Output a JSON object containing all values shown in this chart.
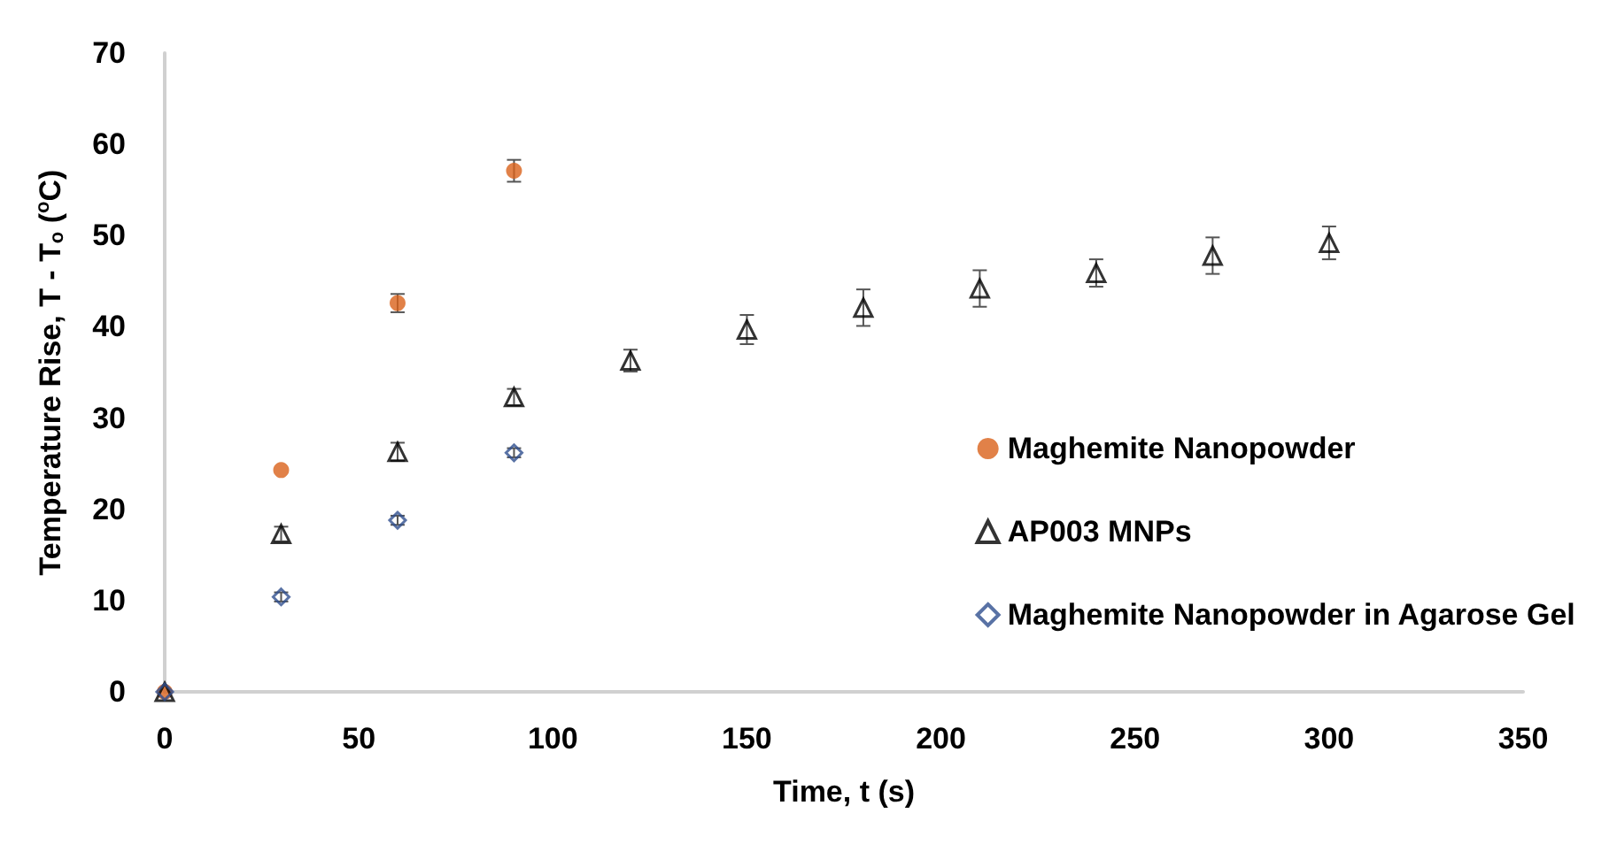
{
  "chart_data": {
    "type": "scatter",
    "xlabel": "Time, t (s)",
    "ylabel": "Temperature Rise, T - T$_{o}$ ($^{o}$C)",
    "xlim": [
      0,
      350
    ],
    "xticks": [
      0,
      50,
      100,
      150,
      200,
      250,
      300,
      350
    ],
    "ylim": [
      0,
      70
    ],
    "yticks": [
      0,
      10,
      20,
      30,
      40,
      50,
      60,
      70
    ],
    "grid": false,
    "legend": "right",
    "series": [
      {
        "name": "Maghemite Nanopowder",
        "color": "#d9621a",
        "marker": "circle",
        "x": [
          0,
          30,
          60,
          90
        ],
        "values": [
          0,
          24.3,
          42.6,
          57.1
        ],
        "errors": [
          null,
          null,
          1.0,
          1.2
        ]
      },
      {
        "name": "AP003 MNPs",
        "color": "#000000",
        "marker": "triangle",
        "x": [
          0,
          30,
          60,
          90,
          120,
          150,
          180,
          210,
          240,
          270,
          300
        ],
        "values": [
          0,
          17.3,
          26.3,
          32.3,
          36.3,
          39.7,
          42.1,
          44.2,
          45.9,
          47.8,
          49.2
        ],
        "errors": [
          null,
          0.8,
          1.0,
          0.9,
          1.2,
          1.6,
          2.0,
          2.0,
          1.5,
          2.0,
          1.8
        ]
      },
      {
        "name": "Maghemite Nanopowder in Agarose Gel",
        "color": "#2f4f8f",
        "marker": "diamond",
        "x": [
          0,
          30,
          60,
          90
        ],
        "values": [
          0,
          10.4,
          18.8,
          26.2
        ],
        "errors": [
          null,
          0.5,
          0.5,
          0.5
        ]
      }
    ]
  }
}
